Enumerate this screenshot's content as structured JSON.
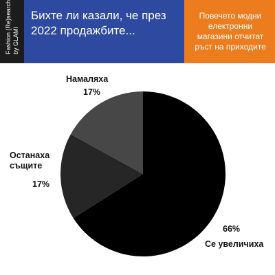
{
  "brand": "Fashion (Re)search",
  "brand_by": "by GLAMI",
  "chart_data": {
    "type": "pie",
    "title": "Бихте ли казали, че през 2022 продажбите...",
    "annotation": "Повечето модни електронни магазини отчитат ръст на приходите",
    "categories": [
      "Се увеличиха",
      "Останаха същите",
      "Намаляха"
    ],
    "values": [
      66,
      17,
      17
    ],
    "value_labels": [
      "66%",
      "17%",
      "17%"
    ],
    "colors": [
      "#000000",
      "#262626",
      "#474747"
    ]
  }
}
